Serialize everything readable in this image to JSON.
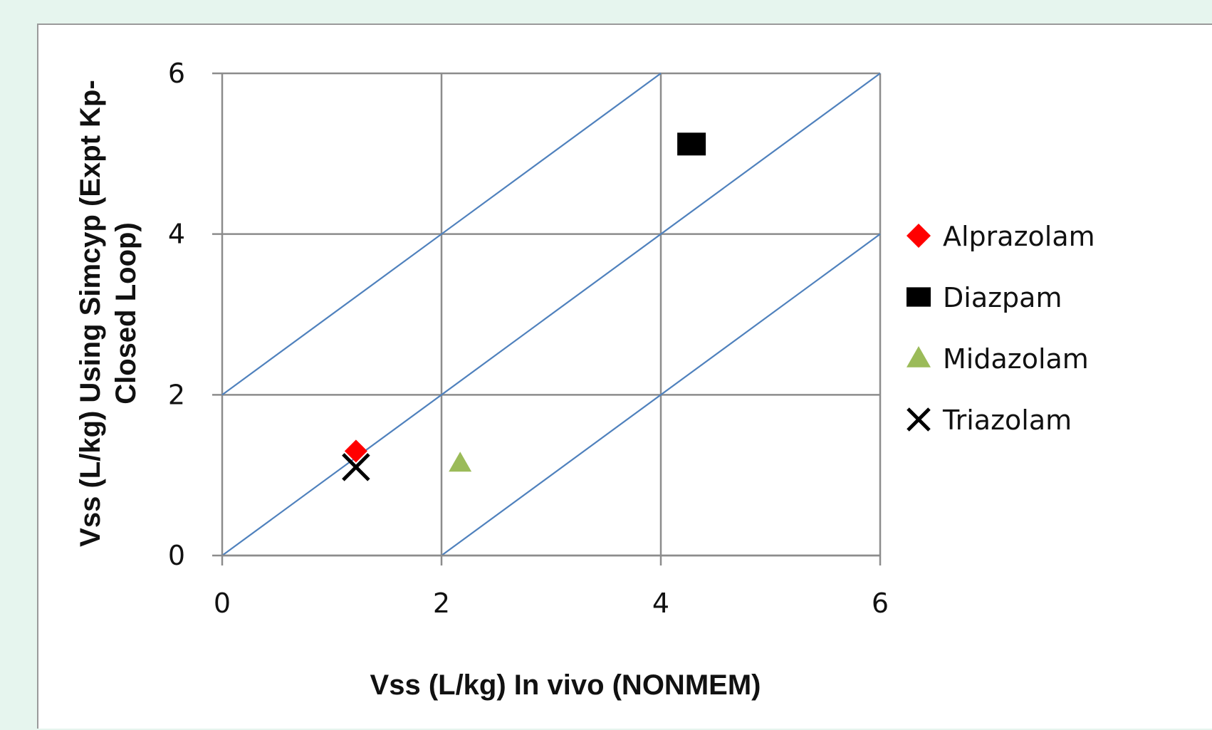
{
  "chart_data": {
    "type": "scatter",
    "title": "",
    "xlabel": "Vss (L/kg)  In vivo (NONMEM)",
    "ylabel_lines": [
      "Vss (L/kg) Using Simcyp (Expt Kp-",
      "Closed Loop)"
    ],
    "xlim": [
      0,
      6
    ],
    "ylim": [
      0,
      6
    ],
    "x_ticks": [
      "0",
      "2",
      "4",
      "6"
    ],
    "y_ticks": [
      "0",
      "2",
      "4",
      "6"
    ],
    "grid": true,
    "legend_position": "right",
    "reference_lines": [
      {
        "label": "y = x + 2",
        "points": [
          [
            0,
            2
          ],
          [
            4,
            6
          ]
        ]
      },
      {
        "label": "y = x",
        "points": [
          [
            0,
            0
          ],
          [
            6,
            6
          ]
        ]
      },
      {
        "label": "y = x - 2",
        "points": [
          [
            2,
            0
          ],
          [
            6,
            4
          ]
        ]
      }
    ],
    "reference_line_color": "#4f81bd",
    "series": [
      {
        "name": "Alprazolam",
        "marker": "diamond",
        "color": "#ff0000",
        "x": [
          1.22
        ],
        "y": [
          1.3
        ]
      },
      {
        "name": "Diazpam",
        "marker": "square",
        "color": "#000000",
        "x": [
          4.28
        ],
        "y": [
          5.12
        ]
      },
      {
        "name": "Midazolam",
        "marker": "triangle",
        "color": "#9bbb59",
        "x": [
          2.17
        ],
        "y": [
          1.15
        ]
      },
      {
        "name": "Triazolam",
        "marker": "cross",
        "color": "#000000",
        "x": [
          1.22
        ],
        "y": [
          1.1
        ]
      }
    ]
  }
}
